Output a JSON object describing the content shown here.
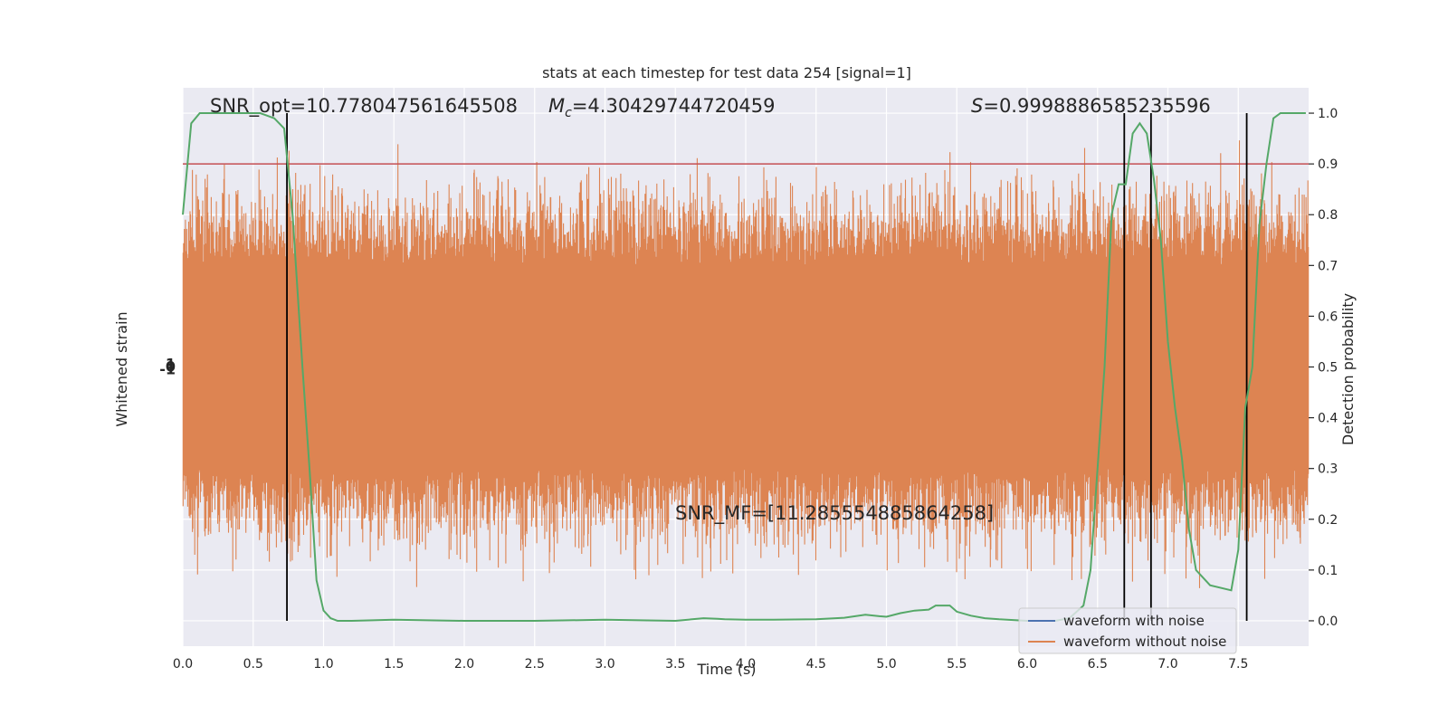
{
  "chart_data": {
    "type": "line",
    "title": "stats at each timestep for test data 254 [signal=1]",
    "xlabel": "Time (s)",
    "ylabel_left": "Whitened strain",
    "ylabel_right": "Detection probability",
    "xlim": [
      0,
      8
    ],
    "ylim_right": [
      -0.05,
      1.05
    ],
    "x_ticks": [
      "0.0",
      "0.5",
      "1.0",
      "1.5",
      "2.0",
      "2.5",
      "3.0",
      "3.5",
      "4.0",
      "4.5",
      "5.0",
      "5.5",
      "6.0",
      "6.5",
      "7.0",
      "7.5"
    ],
    "x_tick_values": [
      0,
      0.5,
      1,
      1.5,
      2,
      2.5,
      3,
      3.5,
      4,
      4.5,
      5,
      5.5,
      6,
      6.5,
      7,
      7.5
    ],
    "y_right_ticks": [
      "0.0",
      "0.1",
      "0.2",
      "0.3",
      "0.4",
      "0.5",
      "0.6",
      "0.7",
      "0.8",
      "0.9",
      "1.0"
    ],
    "y_right_tick_values": [
      0,
      0.1,
      0.2,
      0.3,
      0.4,
      0.5,
      0.6,
      0.7,
      0.8,
      0.9,
      1.0
    ],
    "left_tick_labels": [
      "-1",
      "0",
      "1"
    ],
    "annotations": {
      "snr_opt": "SNR_opt=10.778047561645508",
      "mc_sym": "M",
      "mc_sub": "c",
      "mc_val": "=4.30429744720459",
      "s_sym": "S",
      "s_val": "=0.9998886585235596",
      "snr_mf": "SNR_MF=[11.285554885864258]"
    },
    "threshold": 0.9,
    "vertical_lines": [
      0.74,
      6.69,
      6.88,
      7.56
    ],
    "legend": {
      "placement": "lower-right",
      "entries": [
        {
          "label": "waveform with noise",
          "color": "#4c72b0"
        },
        {
          "label": "waveform without noise",
          "color": "#dd8452"
        }
      ]
    },
    "series": [
      {
        "name": "detection probability",
        "color": "#55a868",
        "axis": "right",
        "x": [
          0,
          0.06,
          0.12,
          0.25,
          0.4,
          0.55,
          0.65,
          0.72,
          0.78,
          0.85,
          0.9,
          0.95,
          1.0,
          1.05,
          1.1,
          1.2,
          1.5,
          2.0,
          2.5,
          3.0,
          3.5,
          3.7,
          3.8,
          3.85,
          4.0,
          4.2,
          4.5,
          4.7,
          4.85,
          4.95,
          5.0,
          5.1,
          5.2,
          5.3,
          5.35,
          5.45,
          5.5,
          5.6,
          5.7,
          5.8,
          6.0,
          6.2,
          6.3,
          6.4,
          6.45,
          6.55,
          6.6,
          6.65,
          6.7,
          6.75,
          6.8,
          6.85,
          6.9,
          6.95,
          7.0,
          7.05,
          7.1,
          7.15,
          7.2,
          7.3,
          7.45,
          7.5,
          7.55,
          7.6,
          7.65,
          7.7,
          7.75,
          7.8,
          7.9,
          7.98
        ],
        "y": [
          0.8,
          0.98,
          1.0,
          1.0,
          1.0,
          1.0,
          0.99,
          0.97,
          0.8,
          0.5,
          0.3,
          0.08,
          0.02,
          0.005,
          0.0,
          0.0,
          0.002,
          0.0,
          0.0,
          0.002,
          0.0,
          0.005,
          0.004,
          0.003,
          0.002,
          0.002,
          0.003,
          0.006,
          0.012,
          0.009,
          0.008,
          0.015,
          0.02,
          0.022,
          0.03,
          0.03,
          0.018,
          0.01,
          0.005,
          0.003,
          0.0,
          0.0,
          0.005,
          0.03,
          0.1,
          0.5,
          0.8,
          0.86,
          0.86,
          0.96,
          0.98,
          0.96,
          0.87,
          0.75,
          0.55,
          0.42,
          0.32,
          0.18,
          0.1,
          0.07,
          0.06,
          0.14,
          0.42,
          0.5,
          0.78,
          0.9,
          0.99,
          1.0,
          1.0,
          1.0
        ]
      }
    ]
  }
}
